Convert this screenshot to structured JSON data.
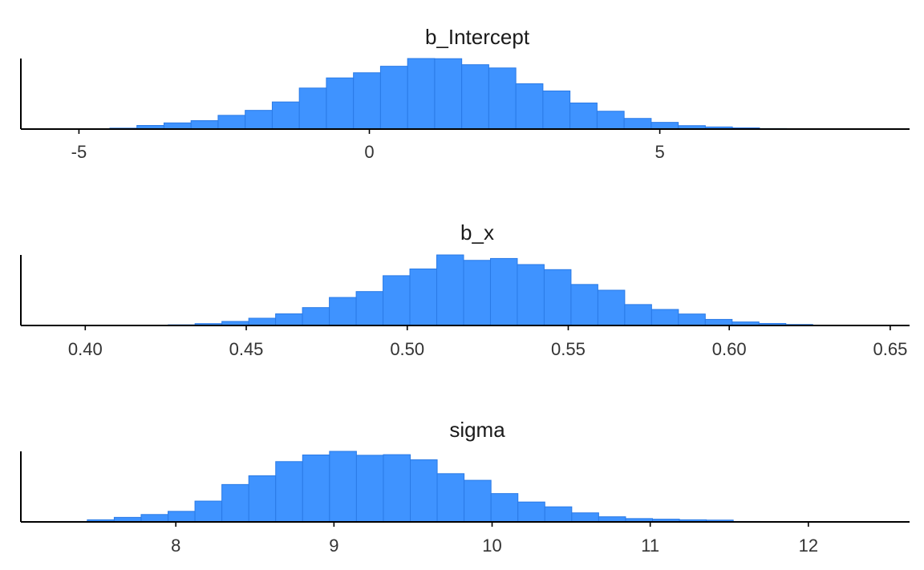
{
  "colors": {
    "bar_fill": "#3f93ff",
    "bar_stroke": "#2a7ae6",
    "axis": "#000000",
    "text": "#333333"
  },
  "chart_data": [
    {
      "type": "bar",
      "title": "b_Intercept",
      "xlim": [
        -6.0,
        9.3
      ],
      "ylim": [
        0,
        2100
      ],
      "ticks": [
        -5,
        0,
        5
      ],
      "tick_labels": [
        "-5",
        "0",
        "5"
      ],
      "bin_start": -5.4,
      "bin_width": 0.466,
      "values": [
        3,
        10,
        27,
        105,
        180,
        245,
        400,
        545,
        790,
        1195,
        1490,
        1640,
        1830,
        2055,
        2050,
        1875,
        1780,
        1320,
        1110,
        760,
        520,
        310,
        195,
        100,
        62,
        35,
        15,
        8,
        5,
        3
      ]
    },
    {
      "type": "bar",
      "title": "b_x",
      "xlim": [
        0.38,
        0.656
      ],
      "ylim": [
        0,
        2100
      ],
      "ticks": [
        0.4,
        0.45,
        0.5,
        0.55,
        0.6,
        0.65
      ],
      "tick_labels": [
        "0.40",
        "0.45",
        "0.50",
        "0.55",
        "0.60",
        "0.65"
      ],
      "bin_start": 0.3924,
      "bin_width": 0.00834,
      "values": [
        5,
        3,
        3,
        10,
        20,
        55,
        120,
        215,
        345,
        530,
        830,
        1005,
        1475,
        1675,
        2090,
        1930,
        1985,
        1805,
        1655,
        1215,
        1045,
        620,
        475,
        340,
        180,
        105,
        60,
        30,
        10,
        5
      ]
    },
    {
      "type": "bar",
      "title": "sigma",
      "xlim": [
        7.02,
        12.64
      ],
      "ylim": [
        0,
        2100
      ],
      "ticks": [
        8,
        9,
        10,
        11,
        12
      ],
      "tick_labels": [
        "8",
        "9",
        "10",
        "11",
        "12"
      ],
      "bin_start": 7.27,
      "bin_width": 0.1702,
      "values": [
        15,
        70,
        150,
        245,
        350,
        690,
        1240,
        1530,
        2000,
        2220,
        2340,
        2210,
        2230,
        2060,
        1600,
        1380,
        940,
        660,
        500,
        300,
        170,
        110,
        90,
        70,
        60,
        15,
        10,
        10,
        5,
        5
      ]
    }
  ]
}
